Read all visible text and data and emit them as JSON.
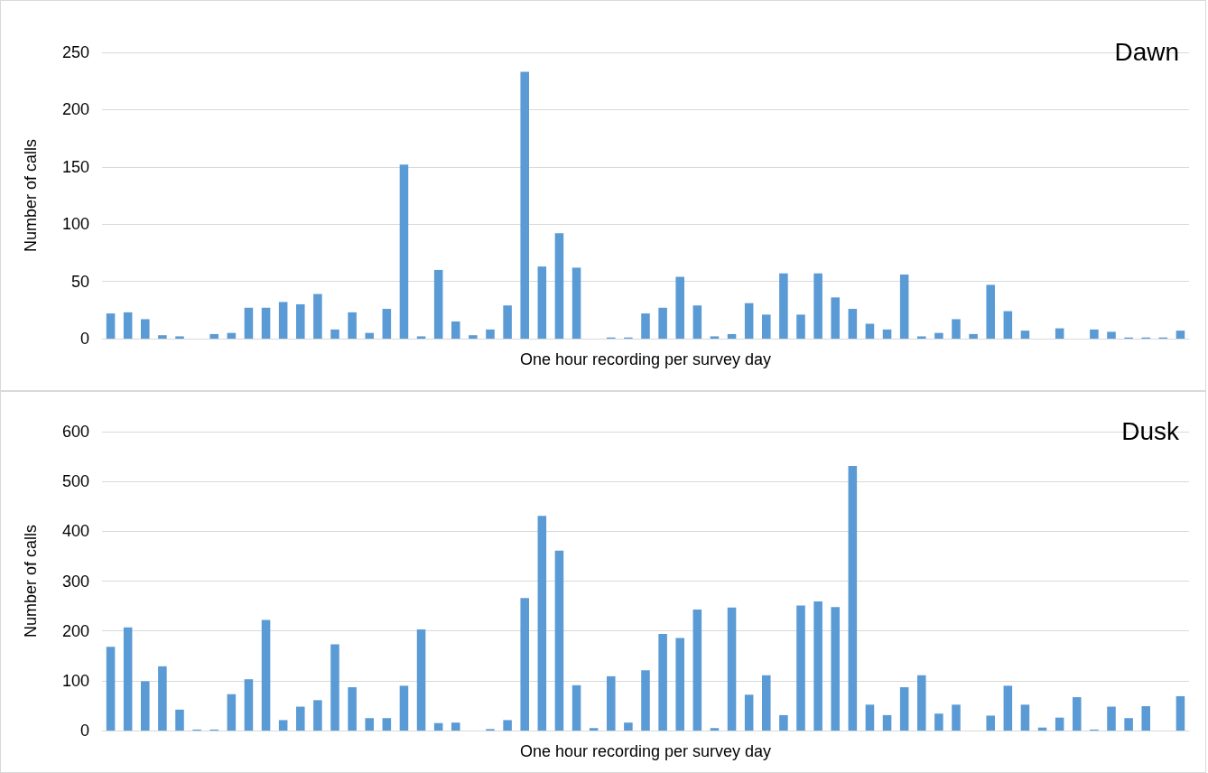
{
  "chart_data": [
    {
      "type": "bar",
      "title": "Dawn",
      "xlabel": "One hour recording per survey day",
      "ylabel": "Number of calls",
      "color": "#5b9bd5",
      "categories": [
        null,
        null,
        null,
        null,
        null,
        null,
        null,
        null,
        null,
        null,
        null,
        null,
        null,
        null,
        null,
        null,
        null,
        null,
        null,
        null,
        null,
        null,
        null,
        null,
        null,
        null,
        null,
        null,
        null,
        null,
        null,
        null,
        null,
        null,
        null,
        null,
        null,
        null,
        null,
        null,
        null,
        null,
        null,
        null,
        null,
        null,
        null,
        null,
        null,
        null,
        null,
        null,
        null,
        null,
        null,
        null,
        null,
        null,
        null,
        null,
        null,
        null,
        null
      ],
      "values": [
        22,
        23,
        17,
        3,
        2,
        0,
        4,
        5,
        27,
        27,
        32,
        30,
        39,
        8,
        23,
        5,
        26,
        152,
        2,
        60,
        15,
        3,
        8,
        29,
        233,
        63,
        92,
        62,
        0,
        1,
        1,
        22,
        27,
        54,
        29,
        2,
        4,
        31,
        21,
        57,
        21,
        57,
        36,
        26,
        13,
        8,
        56,
        2,
        5,
        17,
        4,
        47,
        24,
        7,
        0,
        9,
        0,
        8,
        6,
        1,
        1,
        1,
        7
      ],
      "ylim": [
        0,
        250
      ],
      "yticks": [
        0,
        50,
        100,
        150,
        200,
        250
      ],
      "grid": "y",
      "tick_labels": "y"
    },
    {
      "type": "bar",
      "title": "Dusk",
      "xlabel": "One hour recording per survey day",
      "ylabel": "Number of calls",
      "color": "#5b9bd5",
      "categories": [
        null,
        null,
        null,
        null,
        null,
        null,
        null,
        null,
        null,
        null,
        null,
        null,
        null,
        null,
        null,
        null,
        null,
        null,
        null,
        null,
        null,
        null,
        null,
        null,
        null,
        null,
        null,
        null,
        null,
        null,
        null,
        null,
        null,
        null,
        null,
        null,
        null,
        null,
        null,
        null,
        null,
        null,
        null,
        null,
        null,
        null,
        null,
        null,
        null,
        null,
        null,
        null,
        null,
        null,
        null,
        null,
        null,
        null,
        null,
        null,
        null,
        null,
        null
      ],
      "values": [
        168,
        207,
        99,
        129,
        42,
        2,
        2,
        73,
        103,
        222,
        21,
        48,
        61,
        173,
        87,
        25,
        25,
        90,
        203,
        15,
        16,
        0,
        3,
        21,
        266,
        431,
        361,
        91,
        5,
        109,
        16,
        121,
        194,
        186,
        243,
        5,
        247,
        72,
        111,
        31,
        251,
        259,
        248,
        531,
        52,
        31,
        87,
        111,
        34,
        52,
        0,
        30,
        90,
        52,
        6,
        26,
        67,
        2,
        48,
        25,
        49,
        0,
        69
      ],
      "ylim": [
        0,
        600
      ],
      "yticks": [
        0,
        100,
        200,
        300,
        400,
        500,
        600
      ],
      "grid": "y",
      "tick_labels": "y"
    }
  ]
}
